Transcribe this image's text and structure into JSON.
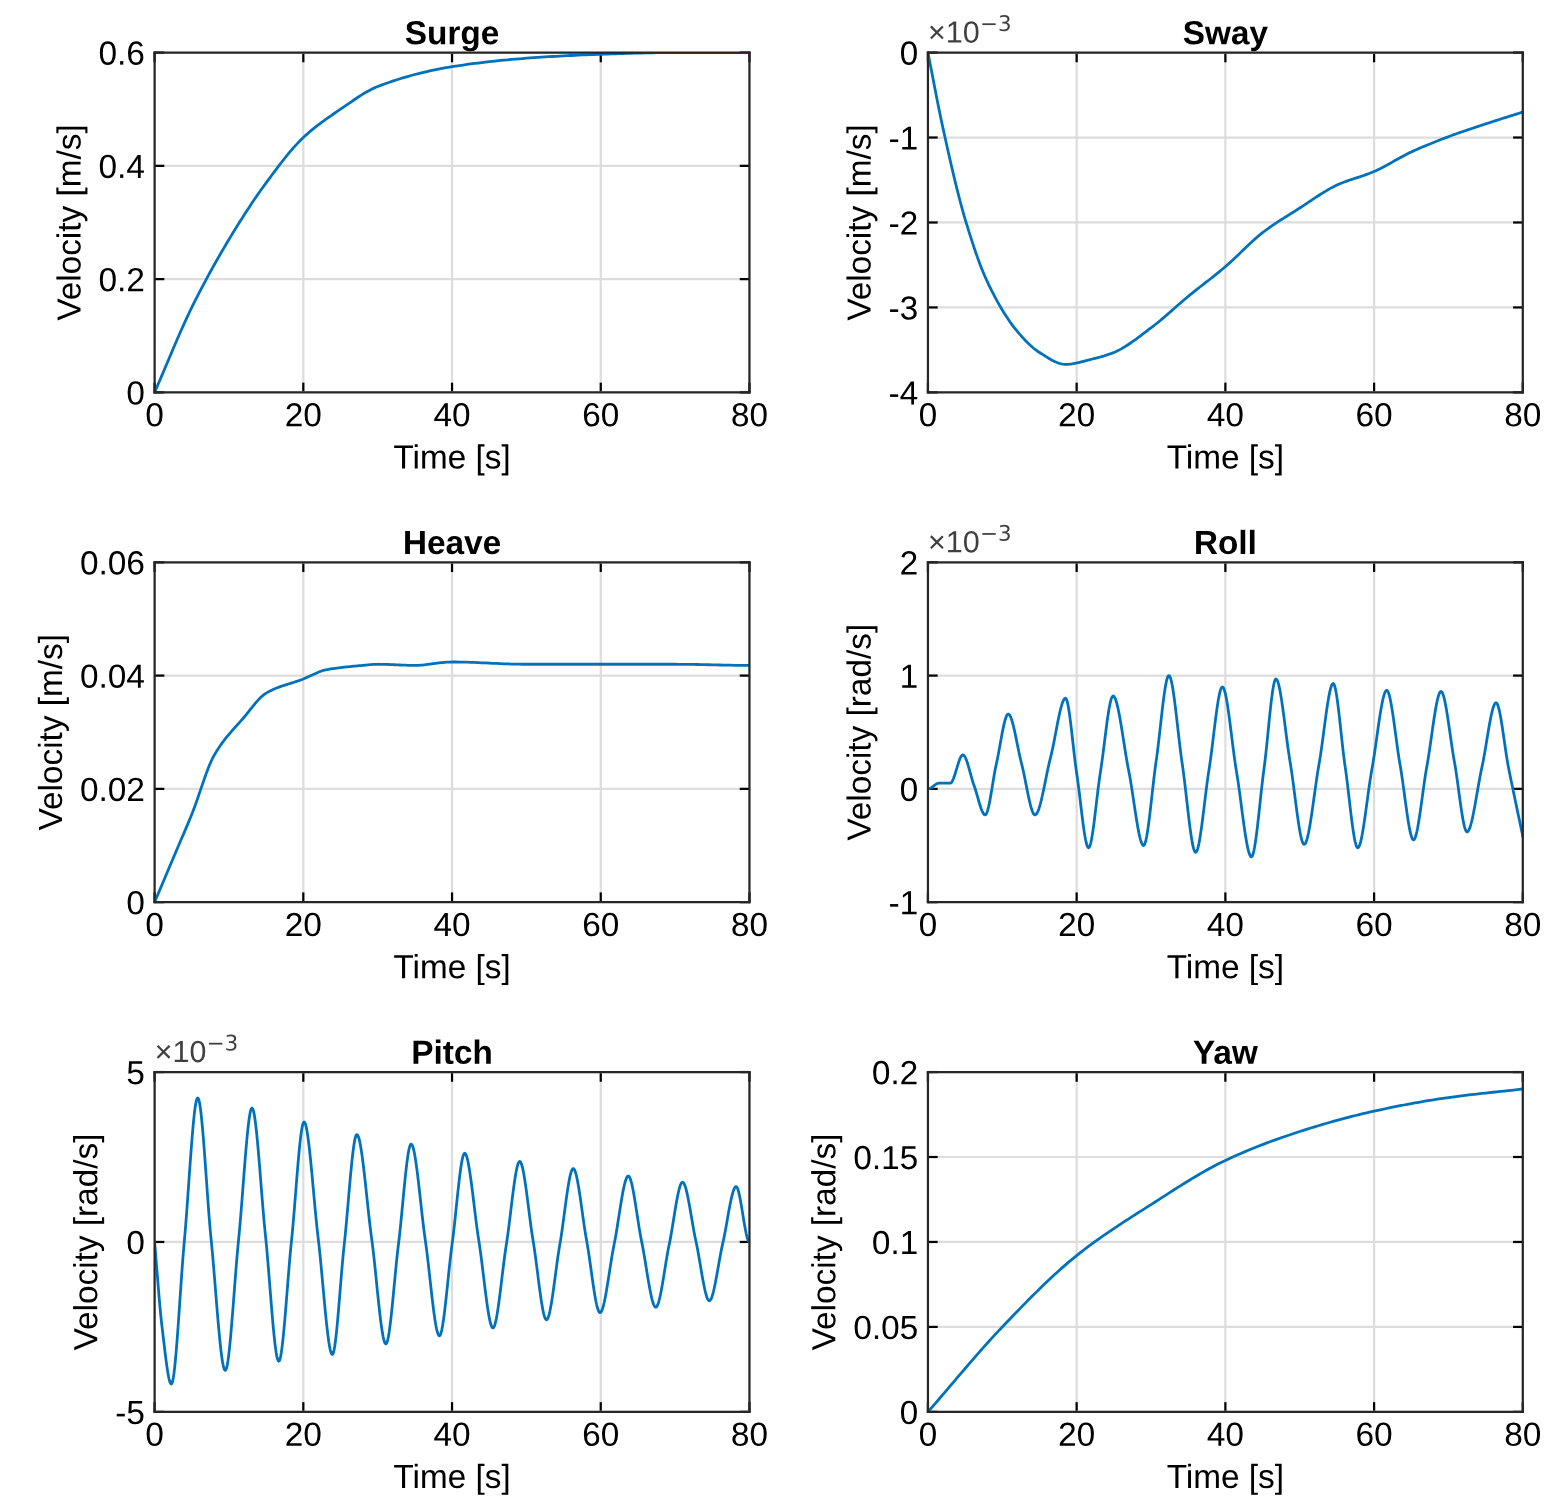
{
  "chart_data": [
    {
      "type": "line",
      "title": "Surge",
      "xlabel": "Time [s]",
      "ylabel": "Velocity [m/s]",
      "xlim": [
        0,
        80
      ],
      "xticks": [
        0,
        20,
        40,
        60,
        80
      ],
      "ylim": [
        0,
        0.6
      ],
      "yticks": [
        0,
        0.2,
        0.4,
        0.6
      ],
      "grid": true,
      "x": [
        0,
        5,
        10,
        15,
        20,
        25,
        30,
        40,
        50,
        60,
        70,
        80
      ],
      "series": [
        {
          "color": "#0072bd",
          "values": [
            0,
            0.15,
            0.27,
            0.37,
            0.45,
            0.5,
            0.54,
            0.575,
            0.59,
            0.597,
            0.6,
            0.6
          ]
        }
      ]
    },
    {
      "type": "line",
      "title": "Sway",
      "xlabel": "Time [s]",
      "ylabel": "Velocity [m/s]",
      "annotations": [
        "×10$^{−3}$"
      ],
      "xlim": [
        0,
        80
      ],
      "xticks": [
        0,
        20,
        40,
        60,
        80
      ],
      "ylim": [
        -4,
        0
      ],
      "yticks": [
        -4,
        -3,
        -2,
        -1,
        0
      ],
      "grid": true,
      "x": [
        0,
        2,
        5,
        8,
        12,
        15,
        18.5,
        22,
        25,
        30,
        35,
        40,
        45,
        50,
        55,
        60,
        65,
        70,
        75,
        80
      ],
      "series": [
        {
          "color": "#0072bd",
          "values": [
            0,
            -0.88,
            -1.96,
            -2.7,
            -3.28,
            -3.53,
            -3.67,
            -3.61,
            -3.53,
            -3.24,
            -2.87,
            -2.52,
            -2.12,
            -1.83,
            -1.56,
            -1.4,
            -1.17,
            -0.99,
            -0.84,
            -0.7
          ]
        }
      ]
    },
    {
      "type": "line",
      "title": "Heave",
      "xlabel": "Time [s]",
      "ylabel": "Velocity [m/s]",
      "xlim": [
        0,
        80
      ],
      "xticks": [
        0,
        20,
        40,
        60,
        80
      ],
      "ylim": [
        0,
        0.06
      ],
      "yticks": [
        0,
        0.02,
        0.04,
        0.06
      ],
      "grid": true,
      "x": [
        0,
        3,
        5,
        8,
        12,
        15,
        20,
        23,
        28,
        30,
        35,
        40,
        50,
        60,
        70,
        80
      ],
      "series": [
        {
          "color": "#0072bd",
          "values": [
            0,
            0.0093,
            0.0155,
            0.0259,
            0.0326,
            0.0369,
            0.0394,
            0.041,
            0.0418,
            0.042,
            0.0418,
            0.0424,
            0.042,
            0.042,
            0.042,
            0.0418
          ]
        }
      ]
    },
    {
      "type": "line",
      "title": "Roll",
      "xlabel": "Time [s]",
      "ylabel": "Velocity [rad/s]",
      "annotations": [
        "×10$^{−3}$"
      ],
      "xlim": [
        0,
        80
      ],
      "xticks": [
        0,
        20,
        40,
        60,
        80
      ],
      "ylim": [
        -1,
        2
      ],
      "yticks": [
        -1,
        0,
        1,
        2
      ],
      "grid": true,
      "x": [
        0,
        1.5,
        3,
        4.7,
        6.2,
        7.7,
        9.2,
        10.8,
        12.6,
        14.4,
        16.5,
        18.5,
        20,
        21.6,
        23.2,
        24.9,
        27,
        29,
        30.7,
        32.4,
        34.2,
        36,
        37.8,
        39.6,
        41.5,
        43.5,
        45.2,
        46.8,
        48.7,
        50.6,
        52.6,
        54.5,
        56.1,
        57.8,
        59.7,
        61.7,
        63.5,
        65.3,
        67.1,
        69,
        70.8,
        72.5,
        74.5,
        76.4,
        78.1,
        80
      ],
      "series": [
        {
          "color": "#0072bd",
          "values": [
            0,
            0.05,
            0.05,
            0.3,
            0.03,
            -0.23,
            0.22,
            0.66,
            0.22,
            -0.23,
            0.28,
            0.8,
            0.14,
            -0.52,
            0.15,
            0.82,
            0.16,
            -0.5,
            0.25,
            1.0,
            0.22,
            -0.56,
            0.17,
            0.9,
            0.15,
            -0.6,
            0.18,
            0.97,
            0.24,
            -0.49,
            0.22,
            0.93,
            0.2,
            -0.52,
            0.17,
            0.87,
            0.21,
            -0.45,
            0.2,
            0.86,
            0.24,
            -0.38,
            0.19,
            0.76,
            0.18,
            -0.42
          ]
        }
      ]
    },
    {
      "type": "line",
      "title": "Pitch",
      "xlabel": "Time [s]",
      "ylabel": "Velocity [rad/s]",
      "annotations": [
        "×10$^{−3}$"
      ],
      "xlim": [
        0,
        80
      ],
      "xticks": [
        0,
        20,
        40,
        60,
        80
      ],
      "ylim": [
        -5,
        5
      ],
      "yticks": [
        -5,
        0,
        5
      ],
      "grid": true,
      "x": [
        0,
        1,
        2.25,
        4,
        5.8,
        7.6,
        9.5,
        11.3,
        13.1,
        14.9,
        16.7,
        18.4,
        20.1,
        22,
        23.9,
        25.5,
        27.2,
        29.2,
        31.1,
        32.8,
        34.5,
        36.4,
        38.3,
        40,
        41.7,
        43.6,
        45.5,
        47.3,
        49.1,
        50.9,
        52.7,
        54.5,
        56.3,
        58.1,
        59.9,
        61.8,
        63.7,
        65.5,
        67.4,
        69.2,
        71,
        72.8,
        74.6,
        76.4,
        78.2,
        80
      ],
      "series": [
        {
          "color": "#0072bd",
          "values": [
            0,
            -2.5,
            -4.18,
            0.03,
            4.24,
            0.08,
            -3.78,
            0.08,
            3.94,
            0.21,
            -3.51,
            0.01,
            3.53,
            0.11,
            -3.31,
            -0.08,
            3.16,
            0.08,
            -3.0,
            -0.06,
            2.88,
            0.06,
            -2.76,
            -0.08,
            2.61,
            0.04,
            -2.53,
            -0.08,
            2.37,
            0.04,
            -2.29,
            -0.07,
            2.16,
            0.04,
            -2.08,
            -0.07,
            1.94,
            0.01,
            -1.92,
            -0.08,
            1.76,
            0.02,
            -1.73,
            -0.05,
            1.63,
            0
          ]
        }
      ]
    },
    {
      "type": "line",
      "title": "Yaw",
      "xlabel": "Time [s]",
      "ylabel": "Velocity [rad/s]",
      "xlim": [
        0,
        80
      ],
      "xticks": [
        0,
        20,
        40,
        60,
        80
      ],
      "ylim": [
        0,
        0.2
      ],
      "yticks": [
        0,
        0.05,
        0.1,
        0.15,
        0.2
      ],
      "grid": true,
      "x": [
        0,
        10,
        20,
        30,
        40,
        50,
        60,
        70,
        80
      ],
      "series": [
        {
          "color": "#0072bd",
          "values": [
            0,
            0.05,
            0.092,
            0.122,
            0.148,
            0.165,
            0.177,
            0.185,
            0.19
          ]
        }
      ]
    }
  ]
}
